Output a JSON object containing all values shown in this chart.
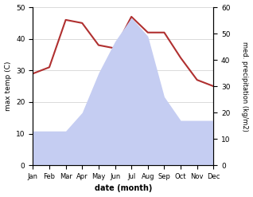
{
  "months": [
    "Jan",
    "Feb",
    "Mar",
    "Apr",
    "May",
    "Jun",
    "Jul",
    "Aug",
    "Sep",
    "Oct",
    "Nov",
    "Dec"
  ],
  "temperature": [
    29,
    31,
    46,
    45,
    38,
    37,
    47,
    42,
    42,
    34,
    27,
    25
  ],
  "precipitation": [
    13,
    13,
    13,
    20,
    35,
    47,
    56,
    49,
    26,
    17,
    17,
    17
  ],
  "temp_color": "#b03030",
  "precip_fill_color": "#c5cdf2",
  "temp_ylim": [
    0,
    50
  ],
  "precip_ylim": [
    0,
    60
  ],
  "xlabel": "date (month)",
  "ylabel_left": "max temp (C)",
  "ylabel_right": "med. precipitation (kg/m2)",
  "bg_color": "#ffffff",
  "grid_color": "#cccccc",
  "yticks_left": [
    0,
    10,
    20,
    30,
    40,
    50
  ],
  "yticks_right": [
    0,
    10,
    20,
    30,
    40,
    50,
    60
  ]
}
